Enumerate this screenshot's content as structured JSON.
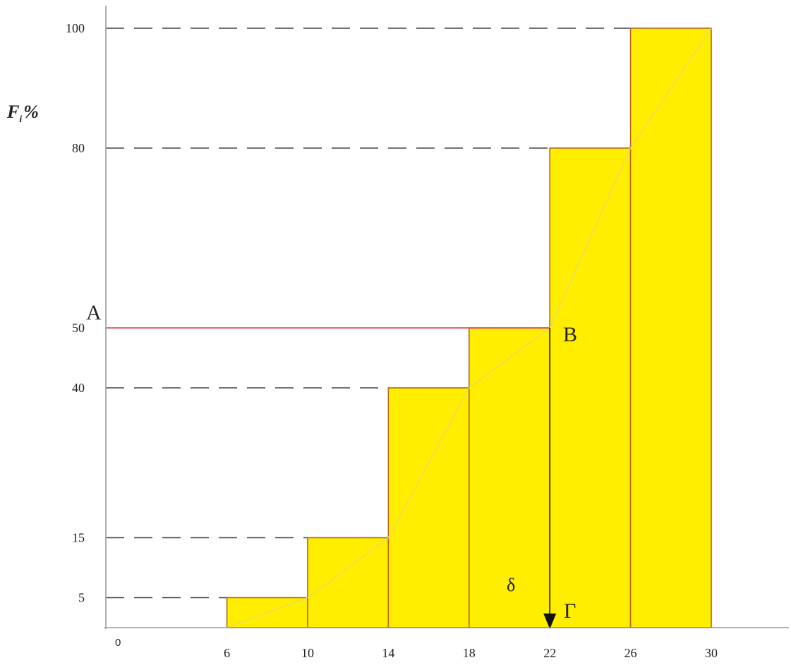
{
  "chart_data": {
    "type": "bar",
    "ylabel": {
      "main": "F",
      "sub": "i",
      "unit": "%"
    },
    "origin_label": "0",
    "x_ticks": [
      "6",
      "10",
      "14",
      "18",
      "22",
      "26",
      "30"
    ],
    "y_ticks": [
      "5",
      "15",
      "40",
      "50",
      "80",
      "100"
    ],
    "xlim": [
      0,
      34
    ],
    "ylim": [
      0,
      100
    ],
    "bins": [
      {
        "from": 6,
        "to": 10,
        "value": 5
      },
      {
        "from": 10,
        "to": 14,
        "value": 15
      },
      {
        "from": 14,
        "to": 18,
        "value": 40
      },
      {
        "from": 18,
        "to": 22,
        "value": 50
      },
      {
        "from": 22,
        "to": 26,
        "value": 80
      },
      {
        "from": 26,
        "to": 30,
        "value": 100
      }
    ],
    "ogive": [
      [
        6,
        0
      ],
      [
        10,
        5
      ],
      [
        14,
        15
      ],
      [
        18,
        40
      ],
      [
        22,
        50
      ],
      [
        26,
        80
      ],
      [
        30,
        100
      ]
    ],
    "reference_levels": [
      5,
      15,
      40,
      50,
      80,
      100
    ],
    "median_line": {
      "y": 50,
      "x_end": 22
    },
    "median_drop": {
      "x": 22,
      "from_y": 50,
      "to_y": 0
    },
    "annotations": {
      "A": "A",
      "B": "B",
      "delta": "δ",
      "gamma": "Γ"
    },
    "grid": false,
    "colors": {
      "bar_fill": "#ffee00",
      "bar_stroke": "#b5651d",
      "ogive": "#e8d86a",
      "median_line": "#e05050",
      "dash": "#444444",
      "axis": "#9a9a9a"
    }
  }
}
